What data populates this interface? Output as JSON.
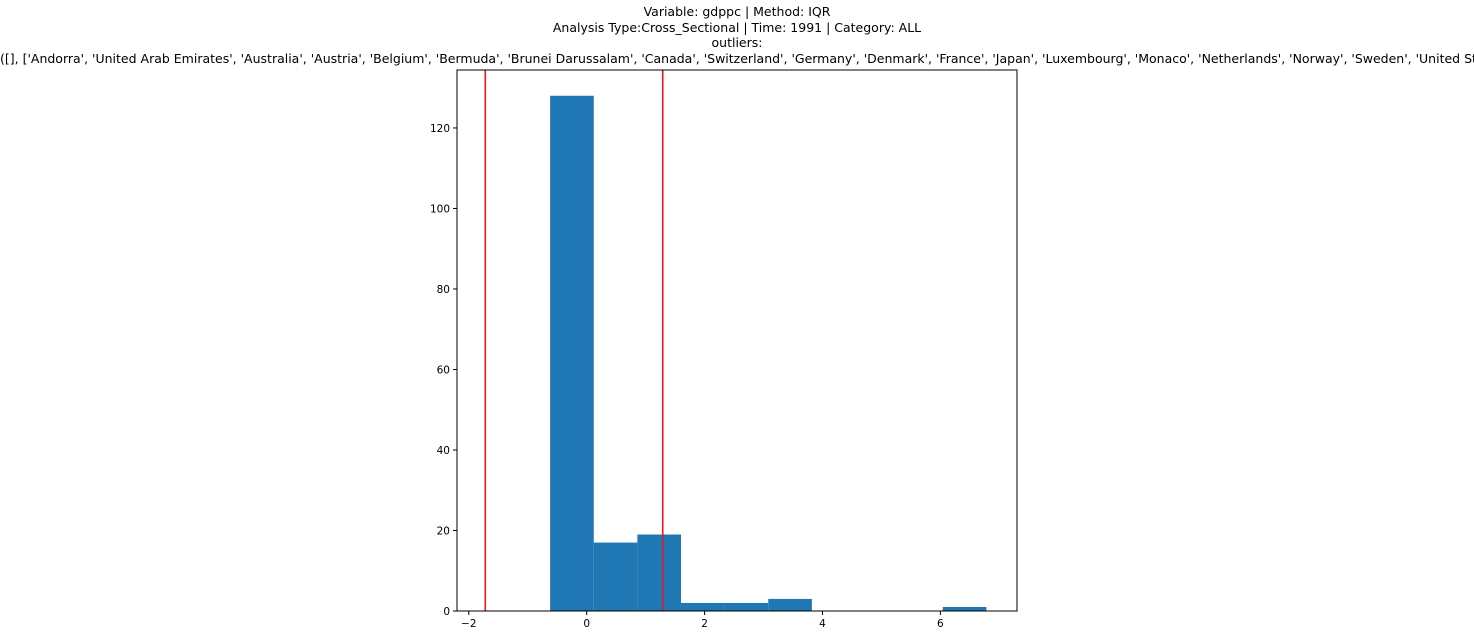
{
  "chart_data": {
    "type": "bar",
    "title_lines": [
      "Variable: gdppc | Method: IQR",
      "Analysis Type:Cross_Sectional | Time: 1991 | Category: ALL",
      "outliers:",
      "([], ['Andorra', 'United Arab Emirates', 'Australia', 'Austria', 'Belgium', 'Bermuda', 'Brunei Darussalam', 'Canada', 'Switzerland', 'Germany', 'Denmark', 'France', 'Japan', 'Luxembourg', 'Monaco', 'Netherlands', 'Norway', 'Sweden', 'United States'])"
    ],
    "xlabel": "",
    "ylabel": "",
    "xlim": [
      -2.2,
      7.3
    ],
    "ylim": [
      0,
      134.4
    ],
    "x_ticks": [
      -2,
      0,
      2,
      4,
      6
    ],
    "y_ticks": [
      0,
      20,
      40,
      60,
      80,
      100,
      120
    ],
    "bins": [
      {
        "x0": -0.62,
        "x1": 0.12,
        "count": 128
      },
      {
        "x0": 0.12,
        "x1": 0.86,
        "count": 17
      },
      {
        "x0": 0.86,
        "x1": 1.6,
        "count": 19
      },
      {
        "x0": 1.6,
        "x1": 2.34,
        "count": 2
      },
      {
        "x0": 2.34,
        "x1": 3.08,
        "count": 2
      },
      {
        "x0": 3.08,
        "x1": 3.82,
        "count": 3
      },
      {
        "x0": 3.82,
        "x1": 4.56,
        "count": 0
      },
      {
        "x0": 4.56,
        "x1": 5.3,
        "count": 0
      },
      {
        "x0": 5.3,
        "x1": 6.04,
        "count": 0
      },
      {
        "x0": 6.04,
        "x1": 6.78,
        "count": 1
      }
    ],
    "vlines": [
      -1.72,
      1.29
    ],
    "bar_color": "#1f77b4",
    "vline_color": "#e31a1c",
    "grid": false,
    "legend": "none"
  }
}
